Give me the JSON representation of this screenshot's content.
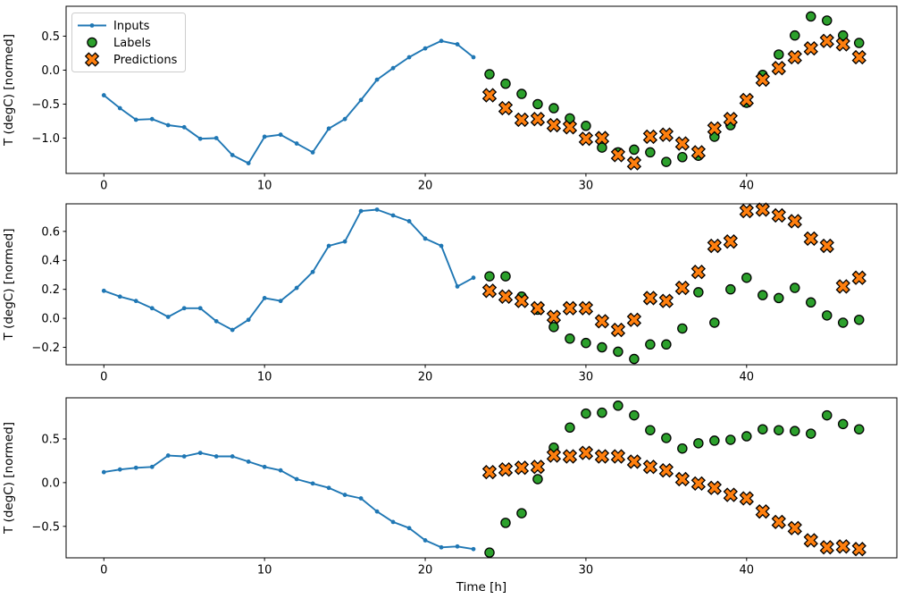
{
  "figure": {
    "background": "#ffffff",
    "shared_ylabel": "T (degC) [normed]",
    "xlabel": "Time [h]"
  },
  "legend": {
    "position": "upper-left",
    "border_color": "#cccccc",
    "background": "#ffffff",
    "items": [
      {
        "label": "Inputs",
        "marker": "line-dot-icon",
        "color": "#1f77b4",
        "edge_color": "#1f77b4"
      },
      {
        "label": "Labels",
        "marker": "circle-icon",
        "color": "#2ca02c",
        "edge_color": "#000000"
      },
      {
        "label": "Predictions",
        "marker": "x-cross-icon",
        "color": "#ff7f0e",
        "edge_color": "#000000"
      }
    ]
  },
  "chart_data": [
    {
      "type": "line",
      "title": "",
      "xlabel": "",
      "ylabel": "T (degC) [normed]",
      "grid": false,
      "xlim": [
        -2.35,
        49.35
      ],
      "ylim": [
        -1.52,
        0.94
      ],
      "xticks": [
        0,
        10,
        20,
        30,
        40
      ],
      "yticks": [
        0.5,
        0.0,
        -0.5,
        -1.0
      ],
      "series": [
        {
          "name": "Inputs",
          "type": "line",
          "marker": "dot",
          "color": "#1f77b4",
          "x": [
            0,
            1,
            2,
            3,
            4,
            5,
            6,
            7,
            8,
            9,
            10,
            11,
            12,
            13,
            14,
            15,
            16,
            17,
            18,
            19,
            20,
            21,
            22,
            23
          ],
          "y": [
            -0.37,
            -0.56,
            -0.73,
            -0.72,
            -0.81,
            -0.84,
            -1.01,
            -1.0,
            -1.25,
            -1.37,
            -0.98,
            -0.95,
            -1.08,
            -1.21,
            -0.86,
            -0.72,
            -0.44,
            -0.14,
            0.03,
            0.19,
            0.32,
            0.43,
            0.38,
            0.19
          ]
        },
        {
          "name": "Labels",
          "type": "scatter",
          "marker": "circle",
          "color": "#2ca02c",
          "edge_color": "#000000",
          "x": [
            24,
            25,
            26,
            27,
            28,
            29,
            30,
            31,
            32,
            33,
            34,
            35,
            36,
            37,
            38,
            39,
            40,
            41,
            42,
            43,
            44,
            45,
            46,
            47
          ],
          "y": [
            -0.06,
            -0.2,
            -0.35,
            -0.5,
            -0.56,
            -0.71,
            -0.82,
            -1.14,
            -1.21,
            -1.17,
            -1.21,
            -1.35,
            -1.28,
            -1.26,
            -0.98,
            -0.81,
            -0.48,
            -0.07,
            0.23,
            0.51,
            0.79,
            0.73,
            0.51,
            0.4
          ]
        },
        {
          "name": "Predictions",
          "type": "scatter",
          "marker": "X",
          "color": "#ff7f0e",
          "edge_color": "#000000",
          "x": [
            24,
            25,
            26,
            27,
            28,
            29,
            30,
            31,
            32,
            33,
            34,
            35,
            36,
            37,
            38,
            39,
            40,
            41,
            42,
            43,
            44,
            45,
            46,
            47
          ],
          "y": [
            -0.37,
            -0.56,
            -0.73,
            -0.72,
            -0.81,
            -0.84,
            -1.01,
            -1.0,
            -1.25,
            -1.37,
            -0.98,
            -0.95,
            -1.08,
            -1.21,
            -0.86,
            -0.72,
            -0.44,
            -0.14,
            0.03,
            0.19,
            0.32,
            0.43,
            0.38,
            0.19
          ]
        }
      ]
    },
    {
      "type": "line",
      "title": "",
      "xlabel": "",
      "ylabel": "T (degC) [normed]",
      "grid": false,
      "xlim": [
        -2.35,
        49.35
      ],
      "ylim": [
        -0.32,
        0.79
      ],
      "xticks": [
        0,
        10,
        20,
        30,
        40
      ],
      "yticks": [
        0.6,
        0.4,
        0.2,
        0.0,
        -0.2
      ],
      "series": [
        {
          "name": "Inputs",
          "type": "line",
          "marker": "dot",
          "color": "#1f77b4",
          "x": [
            0,
            1,
            2,
            3,
            4,
            5,
            6,
            7,
            8,
            9,
            10,
            11,
            12,
            13,
            14,
            15,
            16,
            17,
            18,
            19,
            20,
            21,
            22,
            23
          ],
          "y": [
            0.19,
            0.15,
            0.12,
            0.07,
            0.01,
            0.07,
            0.07,
            -0.02,
            -0.08,
            -0.01,
            0.14,
            0.12,
            0.21,
            0.32,
            0.5,
            0.53,
            0.74,
            0.75,
            0.71,
            0.67,
            0.55,
            0.5,
            0.22,
            0.28
          ]
        },
        {
          "name": "Labels",
          "type": "scatter",
          "marker": "circle",
          "color": "#2ca02c",
          "edge_color": "#000000",
          "x": [
            24,
            25,
            26,
            27,
            28,
            29,
            30,
            31,
            32,
            33,
            34,
            35,
            36,
            37,
            38,
            39,
            40,
            41,
            42,
            43,
            44,
            45,
            46,
            47
          ],
          "y": [
            0.29,
            0.29,
            0.15,
            0.06,
            -0.06,
            -0.14,
            -0.17,
            -0.2,
            -0.23,
            -0.28,
            -0.18,
            -0.18,
            -0.07,
            0.18,
            -0.03,
            0.2,
            0.28,
            0.16,
            0.14,
            0.21,
            0.11,
            0.02,
            -0.03,
            -0.01
          ]
        },
        {
          "name": "Predictions",
          "type": "scatter",
          "marker": "X",
          "color": "#ff7f0e",
          "edge_color": "#000000",
          "x": [
            24,
            25,
            26,
            27,
            28,
            29,
            30,
            31,
            32,
            33,
            34,
            35,
            36,
            37,
            38,
            39,
            40,
            41,
            42,
            43,
            44,
            45,
            46,
            47
          ],
          "y": [
            0.19,
            0.15,
            0.12,
            0.07,
            0.01,
            0.07,
            0.07,
            -0.02,
            -0.08,
            -0.01,
            0.14,
            0.12,
            0.21,
            0.32,
            0.5,
            0.53,
            0.74,
            0.75,
            0.71,
            0.67,
            0.55,
            0.5,
            0.22,
            0.28
          ]
        }
      ]
    },
    {
      "type": "line",
      "title": "",
      "xlabel": "Time [h]",
      "ylabel": "T (degC) [normed]",
      "grid": false,
      "xlim": [
        -2.35,
        49.35
      ],
      "ylim": [
        -0.86,
        0.97
      ],
      "xticks": [
        0,
        10,
        20,
        30,
        40
      ],
      "yticks": [
        0.5,
        0.0,
        -0.5
      ],
      "series": [
        {
          "name": "Inputs",
          "type": "line",
          "marker": "dot",
          "color": "#1f77b4",
          "x": [
            0,
            1,
            2,
            3,
            4,
            5,
            6,
            7,
            8,
            9,
            10,
            11,
            12,
            13,
            14,
            15,
            16,
            17,
            18,
            19,
            20,
            21,
            22,
            23
          ],
          "y": [
            0.12,
            0.15,
            0.17,
            0.18,
            0.31,
            0.3,
            0.34,
            0.3,
            0.3,
            0.24,
            0.18,
            0.14,
            0.04,
            -0.01,
            -0.06,
            -0.14,
            -0.18,
            -0.33,
            -0.45,
            -0.52,
            -0.66,
            -0.74,
            -0.73,
            -0.76
          ]
        },
        {
          "name": "Labels",
          "type": "scatter",
          "marker": "circle",
          "color": "#2ca02c",
          "edge_color": "#000000",
          "x": [
            24,
            25,
            26,
            27,
            28,
            29,
            30,
            31,
            32,
            33,
            34,
            35,
            36,
            37,
            38,
            39,
            40,
            41,
            42,
            43,
            44,
            45,
            46,
            47
          ],
          "y": [
            -0.8,
            -0.46,
            -0.35,
            0.04,
            0.4,
            0.63,
            0.79,
            0.8,
            0.88,
            0.77,
            0.6,
            0.51,
            0.39,
            0.45,
            0.48,
            0.49,
            0.53,
            0.61,
            0.6,
            0.59,
            0.56,
            0.77,
            0.67,
            0.61
          ]
        },
        {
          "name": "Predictions",
          "type": "scatter",
          "marker": "X",
          "color": "#ff7f0e",
          "edge_color": "#000000",
          "x": [
            24,
            25,
            26,
            27,
            28,
            29,
            30,
            31,
            32,
            33,
            34,
            35,
            36,
            37,
            38,
            39,
            40,
            41,
            42,
            43,
            44,
            45,
            46,
            47
          ],
          "y": [
            0.12,
            0.15,
            0.17,
            0.18,
            0.31,
            0.3,
            0.34,
            0.3,
            0.3,
            0.24,
            0.18,
            0.14,
            0.04,
            -0.01,
            -0.06,
            -0.14,
            -0.18,
            -0.33,
            -0.45,
            -0.52,
            -0.66,
            -0.74,
            -0.73,
            -0.76
          ]
        }
      ]
    }
  ]
}
